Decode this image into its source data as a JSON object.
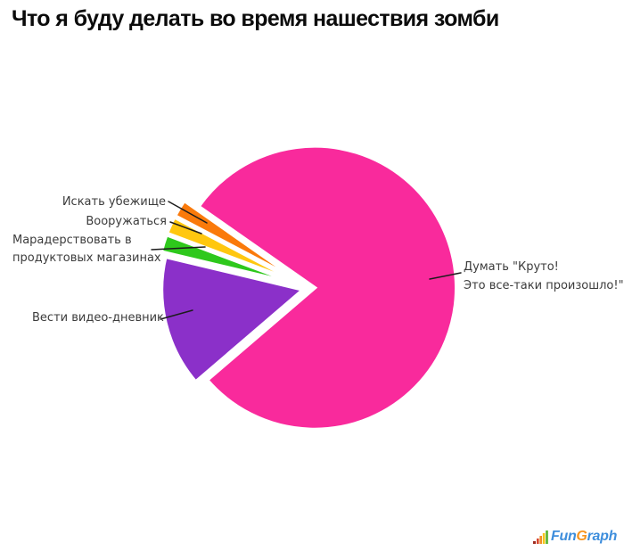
{
  "title": "Что я буду делать во время нашествия зомби",
  "chart_data": {
    "type": "pie",
    "title": "Что я буду делать во время нашествия зомби",
    "values_unit": "percent, estimated from slice angles",
    "legend_position": "none",
    "label_style": "outside callouts with black leader lines, exploded slices with white gaps",
    "background": "#ffffff",
    "slices": [
      {
        "id": "think",
        "label": "Думать \"Круто! Это все-таки произошло!\"",
        "value": 79,
        "color": "#F92A9C"
      },
      {
        "id": "diary",
        "label": "Вести видео-дневник",
        "value": 15,
        "color": "#8B30C9"
      },
      {
        "id": "loot",
        "label": "Марадерствовать в продуктовых магазинах",
        "value": 2,
        "color": "#2EC81C"
      },
      {
        "id": "arm",
        "label": "Вооружаться",
        "value": 2,
        "color": "#FFC70F"
      },
      {
        "id": "shelter",
        "label": "Искать убежище",
        "value": 2,
        "color": "#FA7A0B"
      }
    ]
  },
  "callouts": {
    "shelter": "Искать убежище",
    "arm": "Вооружаться",
    "loot_line1": "Марадерствовать в",
    "loot_line2": "продуктовых магазинах",
    "diary": "Вести видео-дневник",
    "think_line1": "Думать \"Круто!",
    "think_line2": "Это все-таки произошло!\""
  },
  "logo": {
    "fun": "Fun",
    "g": "G",
    "raph": "raph",
    "bar_colors": [
      "#D9472F",
      "#F08F25",
      "#F4C51D",
      "#55B42C"
    ],
    "dot_color": "#9E2B20",
    "text_blue": "#3E8EDC",
    "text_orange": "#F7941E"
  }
}
